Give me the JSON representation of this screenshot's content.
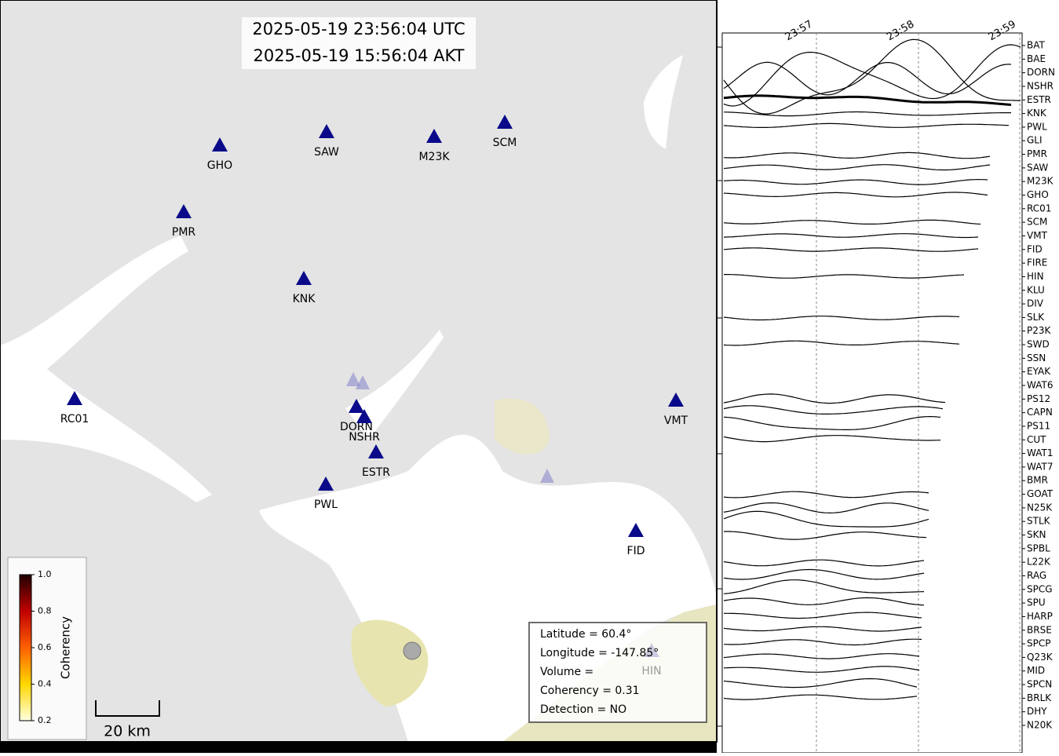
{
  "header": {
    "utc": "2025-05-19 23:56:04 UTC",
    "local": "2025-05-19 15:56:04 AKT"
  },
  "map_stations": [
    "GHO",
    "SAW",
    "M23K",
    "SCM",
    "PMR",
    "KNK",
    "RC01",
    "DORN",
    "NSHR",
    "ESTR",
    "PWL",
    "VMT",
    "FID",
    "HIN"
  ],
  "colorbar": {
    "label": "Coherency",
    "ticks": [
      "1.0",
      "0.8",
      "0.6",
      "0.4",
      "0.2"
    ]
  },
  "scale_bar": "20 km",
  "info": [
    "Latitude = 60.4°",
    "Longitude = -147.85°",
    "Volume =",
    "Coherency = 0.31",
    "Detection = NO"
  ],
  "time_labels": [
    "23:57",
    "23:58",
    "23:59"
  ],
  "trace_stations": [
    "BAT",
    "BAE",
    "DORN",
    "NSHR",
    "ESTR",
    "KNK",
    "PWL",
    "GLI",
    "PMR",
    "SAW",
    "M23K",
    "GHO",
    "RC01",
    "SCM",
    "VMT",
    "FID",
    "FIRE",
    "HIN",
    "KLU",
    "DIV",
    "SLK",
    "P23K",
    "SWD",
    "SSN",
    "EYAK",
    "WAT6",
    "PS12",
    "CAPN",
    "PS11",
    "CUT",
    "WAT1",
    "WAT7",
    "BMR",
    "GOAT",
    "N25K",
    "STLK",
    "SKN",
    "SPBL",
    "L22K",
    "RAG",
    "SPCG",
    "SPU",
    "HARP",
    "BRSE",
    "SPCP",
    "Q23K",
    "MID",
    "SPCN",
    "BRLK",
    "DHY",
    "N20K"
  ]
}
